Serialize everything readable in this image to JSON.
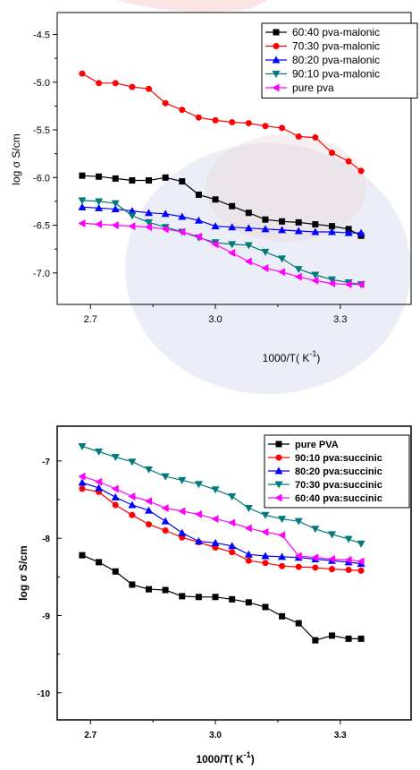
{
  "chart_data": [
    {
      "type": "line",
      "xlabel": "1000/T( K",
      "xlabel_sup": "-1",
      "xlabel_close": ")",
      "ylabel": "log σ  S/cm",
      "xlim": [
        2.62,
        3.47
      ],
      "ylim": [
        -7.33,
        -4.27
      ],
      "xticks": [
        2.7,
        3.0,
        3.3
      ],
      "xtick_labels": [
        "2.7",
        "3.0",
        "3.3"
      ],
      "yticks": [
        -4.5,
        -5.0,
        -5.5,
        -6.0,
        -6.5,
        -7.0
      ],
      "ytick_labels": [
        "-4.5",
        "-5.0",
        "-5.5",
        "-6.0",
        "-6.5",
        "-7.0"
      ],
      "legend_position": "top-right",
      "series": [
        {
          "name": "60:40 pva-malonic",
          "color": "#000000",
          "marker": "square",
          "x": [
            2.68,
            2.72,
            2.76,
            2.8,
            2.84,
            2.88,
            2.92,
            2.96,
            3.0,
            3.04,
            3.08,
            3.12,
            3.16,
            3.2,
            3.24,
            3.28,
            3.32,
            3.35
          ],
          "y": [
            -5.98,
            -5.99,
            -6.01,
            -6.03,
            -6.03,
            -6.0,
            -6.04,
            -6.18,
            -6.23,
            -6.3,
            -6.37,
            -6.44,
            -6.46,
            -6.47,
            -6.49,
            -6.51,
            -6.54,
            -6.61
          ]
        },
        {
          "name": "70:30 pva-malonic",
          "color": "#ff0000",
          "marker": "circle",
          "x": [
            2.68,
            2.72,
            2.76,
            2.8,
            2.84,
            2.88,
            2.92,
            2.96,
            3.0,
            3.04,
            3.08,
            3.12,
            3.16,
            3.2,
            3.24,
            3.28,
            3.32,
            3.35
          ],
          "y": [
            -4.91,
            -5.01,
            -5.01,
            -5.05,
            -5.07,
            -5.22,
            -5.29,
            -5.37,
            -5.4,
            -5.42,
            -5.43,
            -5.46,
            -5.48,
            -5.57,
            -5.58,
            -5.74,
            -5.83,
            -5.93
          ]
        },
        {
          "name": "80:20 pva-malonic",
          "color": "#0000ff",
          "marker": "triangle-up",
          "x": [
            2.68,
            2.72,
            2.76,
            2.8,
            2.84,
            2.88,
            2.92,
            2.96,
            3.0,
            3.04,
            3.08,
            3.12,
            3.16,
            3.2,
            3.24,
            3.28,
            3.32,
            3.35
          ],
          "y": [
            -6.31,
            -6.32,
            -6.33,
            -6.35,
            -6.37,
            -6.38,
            -6.41,
            -6.45,
            -6.51,
            -6.52,
            -6.53,
            -6.54,
            -6.55,
            -6.56,
            -6.57,
            -6.57,
            -6.58,
            -6.58
          ]
        },
        {
          "name": "90:10 pva-malonic",
          "color": "#007a7a",
          "marker": "triangle-down",
          "x": [
            2.68,
            2.72,
            2.76,
            2.8,
            2.84,
            2.88,
            2.92,
            2.96,
            3.0,
            3.04,
            3.08,
            3.12,
            3.16,
            3.2,
            3.24,
            3.28,
            3.32,
            3.35
          ],
          "y": [
            -6.24,
            -6.25,
            -6.27,
            -6.4,
            -6.47,
            -6.52,
            -6.57,
            -6.63,
            -6.68,
            -6.7,
            -6.71,
            -6.78,
            -6.85,
            -6.96,
            -7.02,
            -7.07,
            -7.1,
            -7.12
          ]
        },
        {
          "name": "pure pva",
          "color": "#ff00ff",
          "marker": "triangle-left",
          "x": [
            2.68,
            2.72,
            2.76,
            2.8,
            2.84,
            2.88,
            2.92,
            2.96,
            3.0,
            3.04,
            3.08,
            3.12,
            3.16,
            3.2,
            3.24,
            3.28,
            3.32,
            3.35
          ],
          "y": [
            -6.48,
            -6.49,
            -6.5,
            -6.51,
            -6.52,
            -6.54,
            -6.57,
            -6.62,
            -6.7,
            -6.79,
            -6.88,
            -6.95,
            -6.99,
            -7.04,
            -7.08,
            -7.11,
            -7.12,
            -7.12
          ]
        }
      ]
    },
    {
      "type": "line",
      "xlabel": "1000/T( K",
      "xlabel_sup": "-1",
      "xlabel_close": ")",
      "ylabel": "log σ  S/cm",
      "xlim": [
        2.62,
        3.47
      ],
      "ylim": [
        -10.35,
        -6.55
      ],
      "xticks": [
        2.7,
        3.0,
        3.3
      ],
      "xtick_labels": [
        "2.7",
        "3.0",
        "3.3"
      ],
      "yticks": [
        -7,
        -8,
        -9,
        -10
      ],
      "ytick_labels": [
        "-7",
        "-8",
        "-9",
        "-10"
      ],
      "legend_position": "top-right",
      "series": [
        {
          "name": "pure PVA",
          "color": "#000000",
          "marker": "square",
          "x": [
            2.68,
            2.72,
            2.76,
            2.8,
            2.84,
            2.88,
            2.92,
            2.96,
            3.0,
            3.04,
            3.08,
            3.12,
            3.16,
            3.2,
            3.24,
            3.28,
            3.32,
            3.35
          ],
          "y": [
            -8.22,
            -8.31,
            -8.43,
            -8.6,
            -8.66,
            -8.67,
            -8.75,
            -8.76,
            -8.76,
            -8.79,
            -8.83,
            -8.89,
            -9.01,
            -9.1,
            -9.32,
            -9.26,
            -9.3,
            -9.3
          ]
        },
        {
          "name": "90:10 pva:succinic",
          "color": "#ff0000",
          "marker": "circle",
          "x": [
            2.68,
            2.72,
            2.76,
            2.8,
            2.84,
            2.88,
            2.92,
            2.96,
            3.0,
            3.04,
            3.08,
            3.12,
            3.16,
            3.2,
            3.24,
            3.28,
            3.32,
            3.35
          ],
          "y": [
            -7.36,
            -7.4,
            -7.57,
            -7.7,
            -7.82,
            -7.9,
            -7.99,
            -8.05,
            -8.12,
            -8.18,
            -8.29,
            -8.32,
            -8.36,
            -8.37,
            -8.38,
            -8.4,
            -8.41,
            -8.42
          ]
        },
        {
          "name": "80:20 pva:succinic",
          "color": "#0000ff",
          "marker": "triangle-up",
          "x": [
            2.68,
            2.72,
            2.76,
            2.8,
            2.84,
            2.88,
            2.92,
            2.96,
            3.0,
            3.04,
            3.08,
            3.12,
            3.16,
            3.2,
            3.24,
            3.28,
            3.32,
            3.35
          ],
          "y": [
            -7.28,
            -7.35,
            -7.47,
            -7.57,
            -7.64,
            -7.78,
            -7.93,
            -8.04,
            -8.06,
            -8.1,
            -8.21,
            -8.23,
            -8.24,
            -8.25,
            -8.27,
            -8.29,
            -8.31,
            -8.33
          ]
        },
        {
          "name": "70:30 pva:succinic",
          "color": "#007a7a",
          "marker": "triangle-down",
          "x": [
            2.68,
            2.72,
            2.76,
            2.8,
            2.84,
            2.88,
            2.92,
            2.96,
            3.0,
            3.04,
            3.08,
            3.12,
            3.16,
            3.2,
            3.24,
            3.28,
            3.32,
            3.35
          ],
          "y": [
            -6.81,
            -6.88,
            -6.95,
            -7.01,
            -7.11,
            -7.2,
            -7.25,
            -7.3,
            -7.37,
            -7.46,
            -7.61,
            -7.7,
            -7.75,
            -7.78,
            -7.88,
            -7.95,
            -8.01,
            -8.07
          ]
        },
        {
          "name": "60:40 pva:succinic",
          "color": "#ff00ff",
          "marker": "triangle-left",
          "x": [
            2.68,
            2.72,
            2.76,
            2.8,
            2.84,
            2.88,
            2.92,
            2.96,
            3.0,
            3.04,
            3.08,
            3.12,
            3.16,
            3.2,
            3.24,
            3.28,
            3.32,
            3.35
          ],
          "y": [
            -7.2,
            -7.27,
            -7.36,
            -7.46,
            -7.52,
            -7.61,
            -7.65,
            -7.69,
            -7.75,
            -7.8,
            -7.87,
            -7.92,
            -7.96,
            -8.23,
            -8.25,
            -8.27,
            -8.28,
            -8.3
          ]
        }
      ]
    }
  ]
}
